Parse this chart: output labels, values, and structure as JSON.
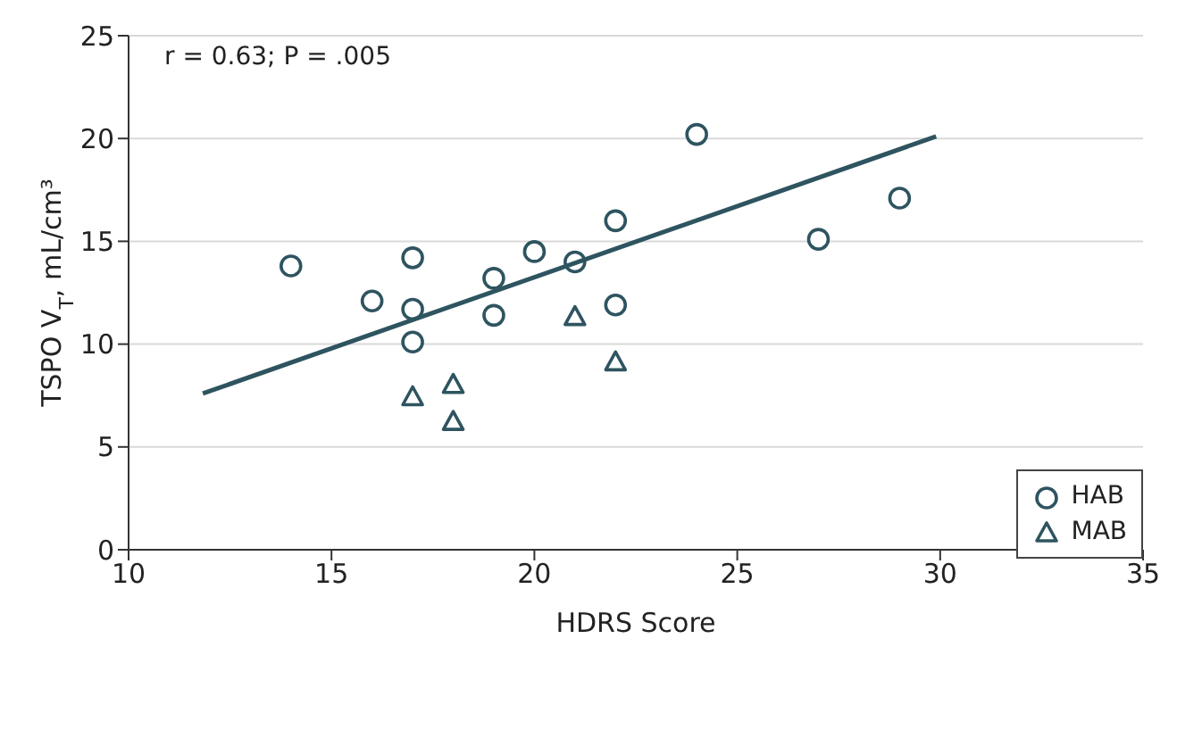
{
  "chart_data": {
    "type": "scatter",
    "xlabel": "HDRS Score",
    "ylabel": "TSPO V$_{T}$, mL/cm³",
    "annotations": [
      "r = 0.63; P = .005"
    ],
    "xlim": [
      10,
      35
    ],
    "xticks": [
      10,
      15,
      20,
      25,
      30,
      35
    ],
    "ylim": [
      0,
      25
    ],
    "yticks": [
      0,
      5,
      10,
      15,
      20,
      25
    ],
    "grid": "y",
    "legend": "bottom right",
    "series": [
      {
        "name": "HAB",
        "color": "#2e5460",
        "marker": "circle",
        "x": [
          14,
          16,
          17,
          17,
          17,
          19,
          19,
          20,
          21,
          22,
          22,
          24,
          27,
          29
        ],
        "values": [
          13.8,
          12.1,
          14.2,
          11.7,
          10.1,
          13.2,
          11.4,
          14.5,
          14.0,
          16.0,
          11.9,
          20.2,
          15.1,
          17.1
        ]
      },
      {
        "name": "MAB",
        "color": "#2e5460",
        "marker": "triangle",
        "x": [
          17,
          18,
          18,
          21,
          22
        ],
        "values": [
          7.4,
          8.0,
          6.2,
          11.3,
          9.1
        ]
      },
      {
        "type": "line",
        "color": "#2e5460",
        "marker": "none",
        "x": [
          11.83,
          29.9
        ],
        "values": [
          7.6,
          20.1
        ]
      }
    ]
  }
}
